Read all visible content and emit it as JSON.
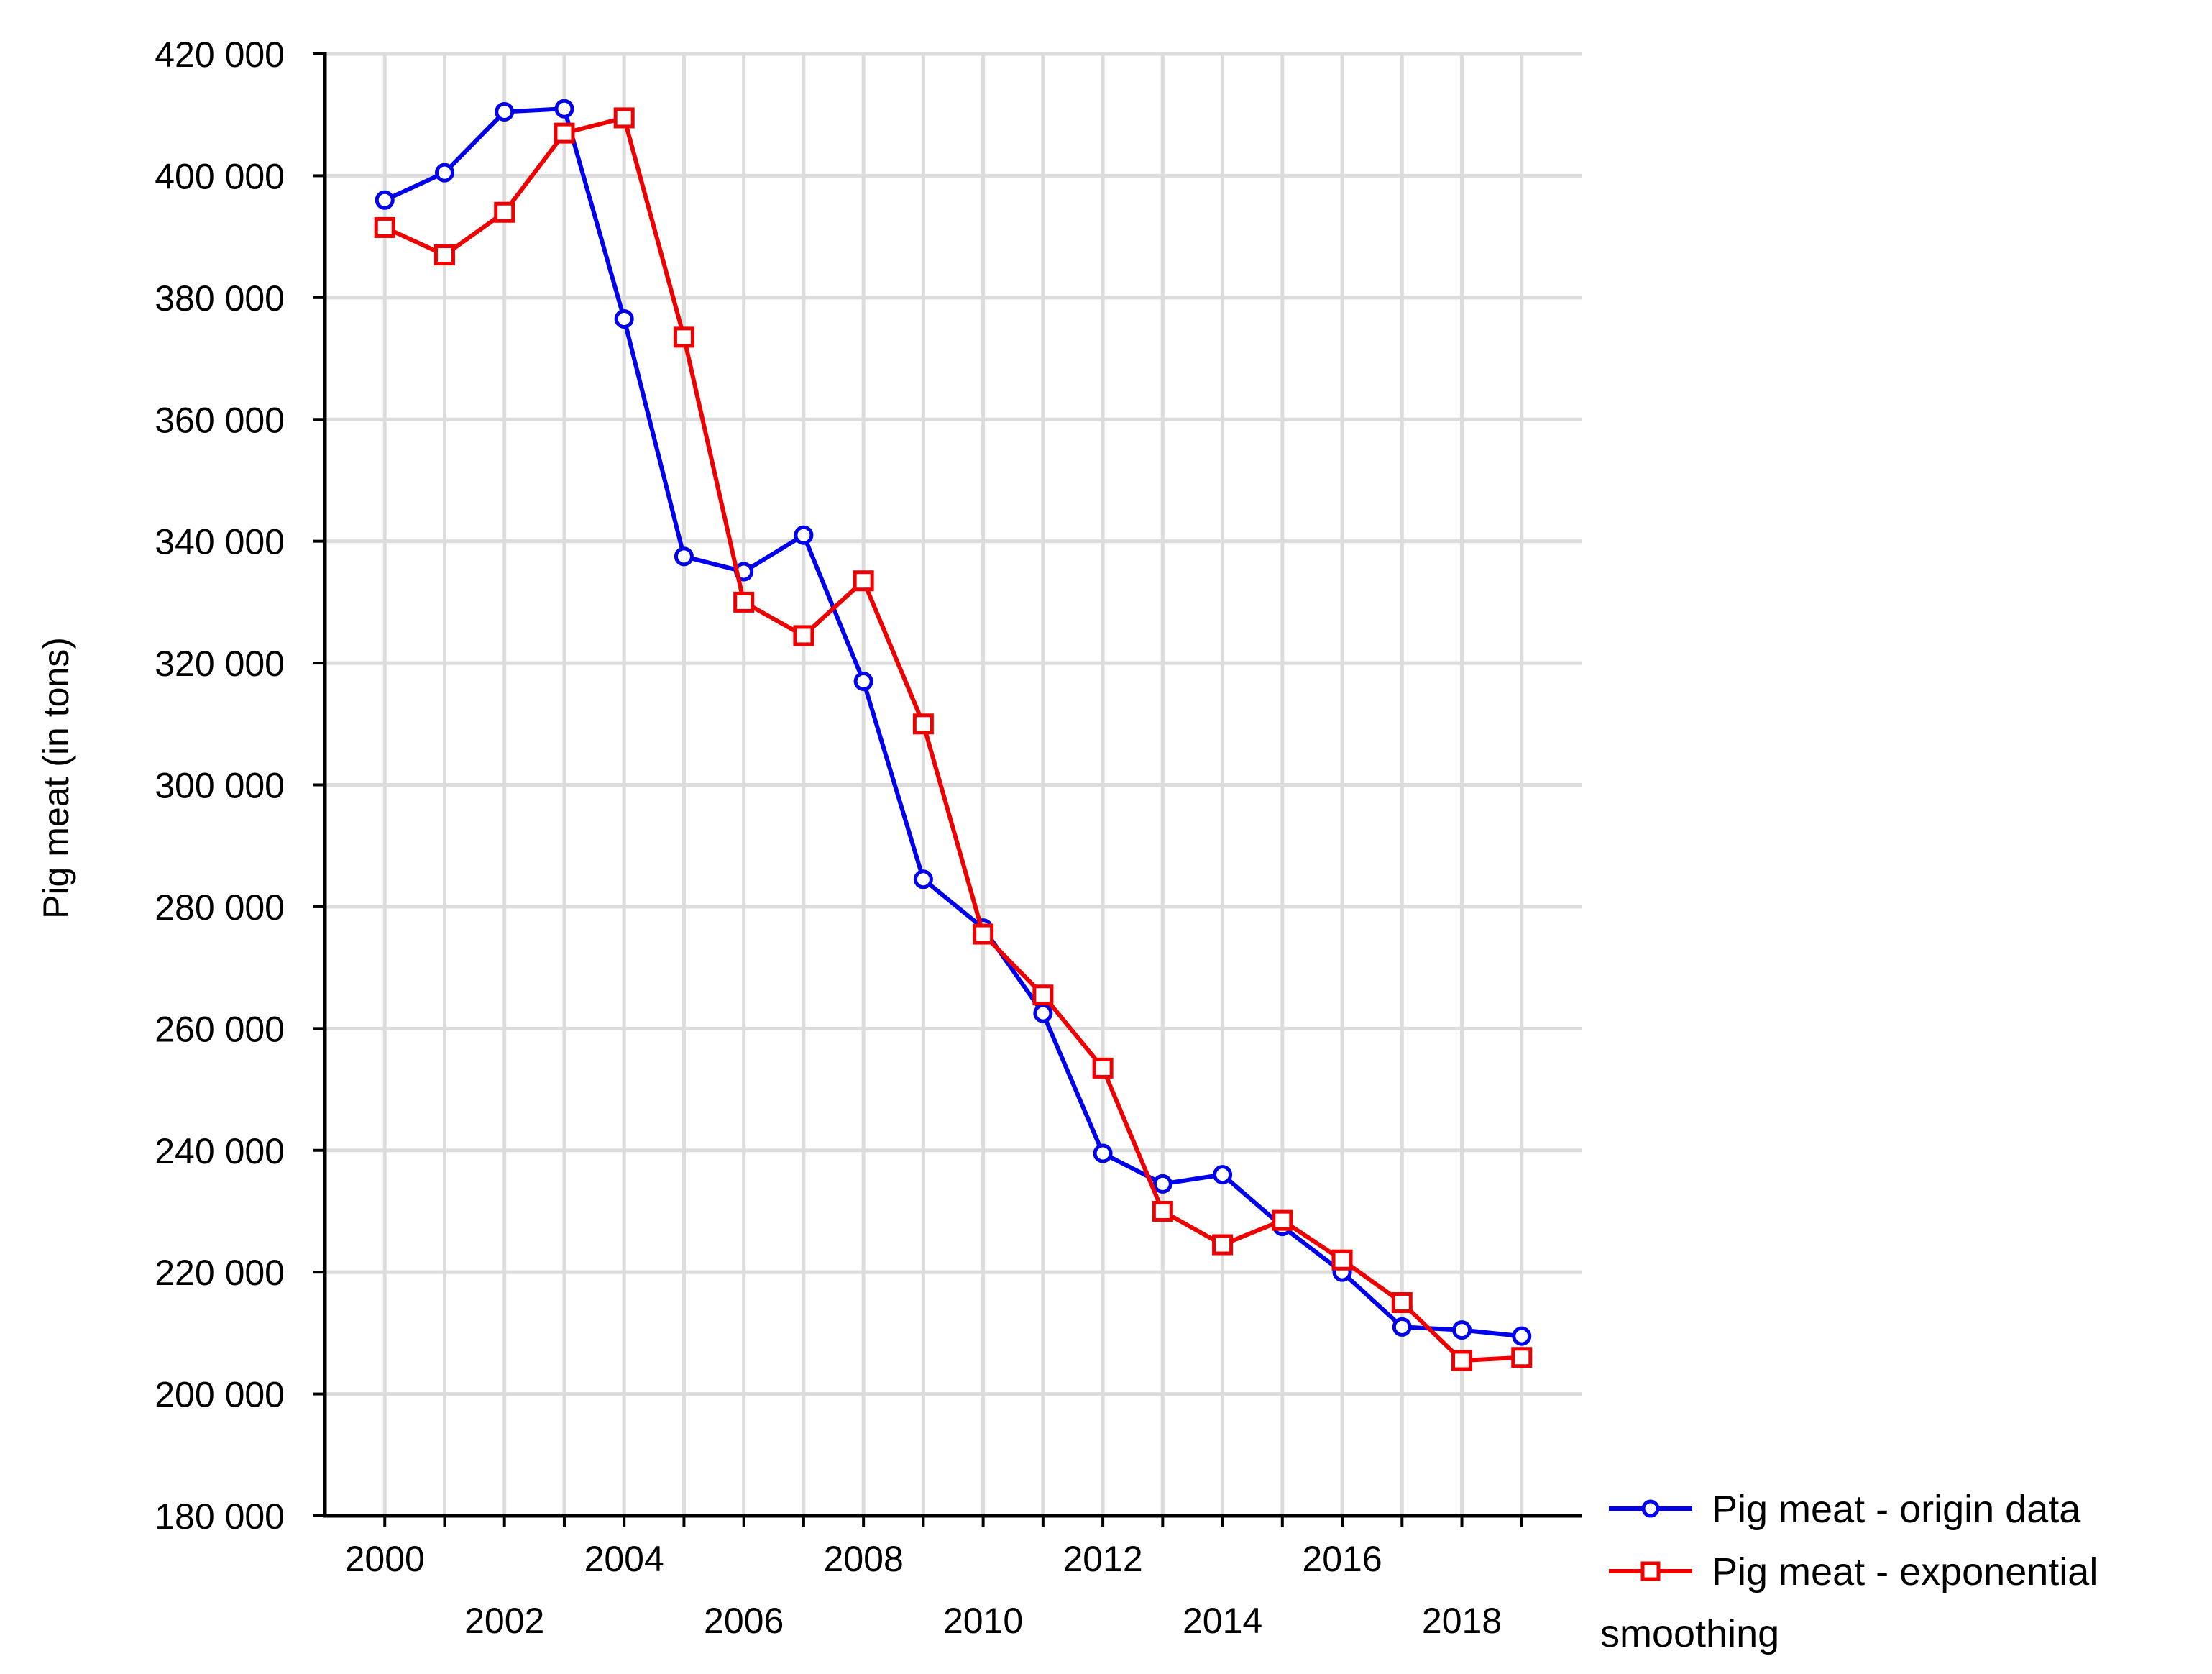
{
  "chart_data": {
    "type": "line",
    "title": "",
    "xlabel": "",
    "ylabel": "Pig meat (in tons)",
    "x": [
      2000,
      2001,
      2002,
      2003,
      2004,
      2005,
      2006,
      2007,
      2008,
      2009,
      2010,
      2011,
      2012,
      2013,
      2014,
      2015,
      2016,
      2017,
      2018,
      2019
    ],
    "xlim": [
      1999,
      2020
    ],
    "ylim": [
      180000,
      420000
    ],
    "grid": true,
    "legend_position": "bottom-right outside",
    "x_tick_labels": [
      "2000",
      "2002",
      "2004",
      "2006",
      "2008",
      "2010",
      "2012",
      "2014",
      "2016",
      "2018"
    ],
    "y_tick_labels": [
      "180 000",
      "200 000",
      "220 000",
      "240 000",
      "260 000",
      "280 000",
      "300 000",
      "320 000",
      "340 000",
      "360 000",
      "380 000",
      "400 000",
      "420 000"
    ],
    "series": [
      {
        "name": "Pig meat - origin data",
        "color": "#0000ee",
        "marker": "circle",
        "values": [
          396000,
          400500,
          410500,
          411000,
          376500,
          337500,
          335000,
          341000,
          317000,
          284500,
          276500,
          262500,
          239500,
          234500,
          236000,
          227500,
          220000,
          211000,
          210500,
          209500
        ]
      },
      {
        "name": "Pig meat - exponential",
        "name_line2": "smoothing",
        "color": "#ee0000",
        "marker": "square",
        "values": [
          391500,
          387000,
          394000,
          407000,
          409500,
          373500,
          330000,
          324500,
          333500,
          310000,
          275500,
          265500,
          253500,
          230000,
          224500,
          228500,
          222000,
          215000,
          205500,
          206000
        ]
      }
    ]
  }
}
